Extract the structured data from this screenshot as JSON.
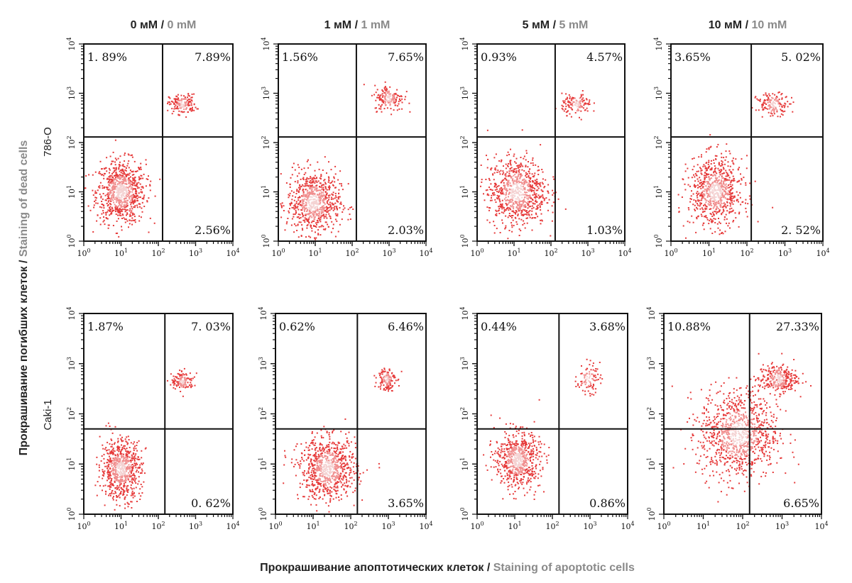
{
  "figure": {
    "column_titles": [
      {
        "ru": "0 мМ",
        "sep": " / ",
        "en": "0 mM"
      },
      {
        "ru": "1 мМ",
        "sep": " / ",
        "en": "1 mM"
      },
      {
        "ru": "5 мМ",
        "sep": " / ",
        "en": "5 mM"
      },
      {
        "ru": "10 мМ",
        "sep": " / ",
        "en": "10 mM"
      }
    ],
    "row_labels": [
      "786-O",
      "Caki-1"
    ],
    "x_axis_title": {
      "ru": "Прокрашивание апоптотических клеток",
      "sep": " / ",
      "en": "Staining of apoptotic cells"
    },
    "y_axis_title": {
      "ru": "Прокрашивание погибших клеток",
      "sep": " / ",
      "en": "Staining of dead cells"
    },
    "tick_base": "10",
    "tick_exponents": [
      "0",
      "1",
      "2",
      "3",
      "4"
    ]
  },
  "chart_data": [
    {
      "type": "scatter",
      "row": "786-O",
      "column": "0 mM",
      "scale": "log",
      "xlim": [
        1,
        10000
      ],
      "ylim": [
        1,
        10000
      ],
      "gate": {
        "x": 130,
        "y": 130
      },
      "quadrants": {
        "upper_left": "1. 89%",
        "upper_right": "7.89%",
        "lower_right": "2.56%"
      },
      "populations": [
        {
          "cx": 10,
          "cy": 10,
          "sx": 0.33,
          "sy": 0.32,
          "n": 800
        },
        {
          "cx": 450,
          "cy": 600,
          "sx": 0.18,
          "sy": 0.1,
          "n": 160
        }
      ]
    },
    {
      "type": "scatter",
      "row": "786-O",
      "column": "1 mM",
      "scale": "log",
      "xlim": [
        1,
        10000
      ],
      "ylim": [
        1,
        10000
      ],
      "gate": {
        "x": 130,
        "y": 130
      },
      "quadrants": {
        "upper_left": "1.56%",
        "upper_right": "7.65%",
        "lower_right": "2.03%"
      },
      "populations": [
        {
          "cx": 9,
          "cy": 6,
          "sx": 0.36,
          "sy": 0.32,
          "n": 750
        },
        {
          "cx": 1000,
          "cy": 800,
          "sx": 0.2,
          "sy": 0.13,
          "n": 170
        }
      ]
    },
    {
      "type": "scatter",
      "row": "786-O",
      "column": "5 mM",
      "scale": "log",
      "xlim": [
        1,
        10000
      ],
      "ylim": [
        1,
        10000
      ],
      "gate": {
        "x": 130,
        "y": 130
      },
      "quadrants": {
        "upper_left": "0.93%",
        "upper_right": "4.57%",
        "lower_right": "1.03%"
      },
      "populations": [
        {
          "cx": 12,
          "cy": 10,
          "sx": 0.4,
          "sy": 0.35,
          "n": 800
        },
        {
          "cx": 500,
          "cy": 600,
          "sx": 0.2,
          "sy": 0.1,
          "n": 130
        }
      ]
    },
    {
      "type": "scatter",
      "row": "786-O",
      "column": "10 mM",
      "scale": "log",
      "xlim": [
        1,
        10000
      ],
      "ylim": [
        1,
        10000
      ],
      "gate": {
        "x": 130,
        "y": 130
      },
      "quadrants": {
        "upper_left": "3.65%",
        "upper_right": "5. 02%",
        "lower_right": "2. 52%"
      },
      "populations": [
        {
          "cx": 15,
          "cy": 10,
          "sx": 0.35,
          "sy": 0.35,
          "n": 760
        },
        {
          "cx": 500,
          "cy": 600,
          "sx": 0.22,
          "sy": 0.11,
          "n": 150
        }
      ]
    },
    {
      "type": "scatter",
      "row": "Caki-1",
      "column": "0 mM",
      "scale": "log",
      "xlim": [
        1,
        10000
      ],
      "ylim": [
        1,
        10000
      ],
      "gate": {
        "x": 150,
        "y": 50
      },
      "quadrants": {
        "upper_left": "1.87%",
        "upper_right": "7. 03%",
        "lower_right": "0. 62%"
      },
      "populations": [
        {
          "cx": 10,
          "cy": 8,
          "sx": 0.27,
          "sy": 0.3,
          "n": 700
        },
        {
          "cx": 450,
          "cy": 450,
          "sx": 0.15,
          "sy": 0.09,
          "n": 140
        }
      ]
    },
    {
      "type": "scatter",
      "row": "Caki-1",
      "column": "1 mM",
      "scale": "log",
      "xlim": [
        1,
        10000
      ],
      "ylim": [
        1,
        10000
      ],
      "gate": {
        "x": 150,
        "y": 50
      },
      "quadrants": {
        "upper_left": "0.62%",
        "upper_right": "6.46%",
        "lower_right": "3.65%"
      },
      "populations": [
        {
          "cx": 25,
          "cy": 8,
          "sx": 0.38,
          "sy": 0.3,
          "n": 800
        },
        {
          "cx": 900,
          "cy": 500,
          "sx": 0.12,
          "sy": 0.12,
          "n": 130
        }
      ]
    },
    {
      "type": "scatter",
      "row": "Caki-1",
      "column": "5 mM",
      "scale": "log",
      "xlim": [
        1,
        10000
      ],
      "ylim": [
        1,
        10000
      ],
      "gate": {
        "x": 150,
        "y": 50
      },
      "quadrants": {
        "upper_left": "0.44%",
        "upper_right": "3.68%",
        "lower_right": "0.86%"
      },
      "populations": [
        {
          "cx": 12,
          "cy": 12,
          "sx": 0.3,
          "sy": 0.28,
          "n": 650
        },
        {
          "cx": 900,
          "cy": 500,
          "sx": 0.15,
          "sy": 0.15,
          "n": 90
        }
      ]
    },
    {
      "type": "scatter",
      "row": "Caki-1",
      "column": "10 mM",
      "scale": "log",
      "xlim": [
        1,
        10000
      ],
      "ylim": [
        1,
        10000
      ],
      "gate": {
        "x": 150,
        "y": 50
      },
      "quadrants": {
        "upper_left": "10.88%",
        "upper_right": "27.33%",
        "lower_right": "6.65%"
      },
      "populations": [
        {
          "cx": 80,
          "cy": 40,
          "sx": 0.5,
          "sy": 0.45,
          "n": 1000
        },
        {
          "cx": 800,
          "cy": 500,
          "sx": 0.25,
          "sy": 0.14,
          "n": 300
        }
      ]
    }
  ]
}
